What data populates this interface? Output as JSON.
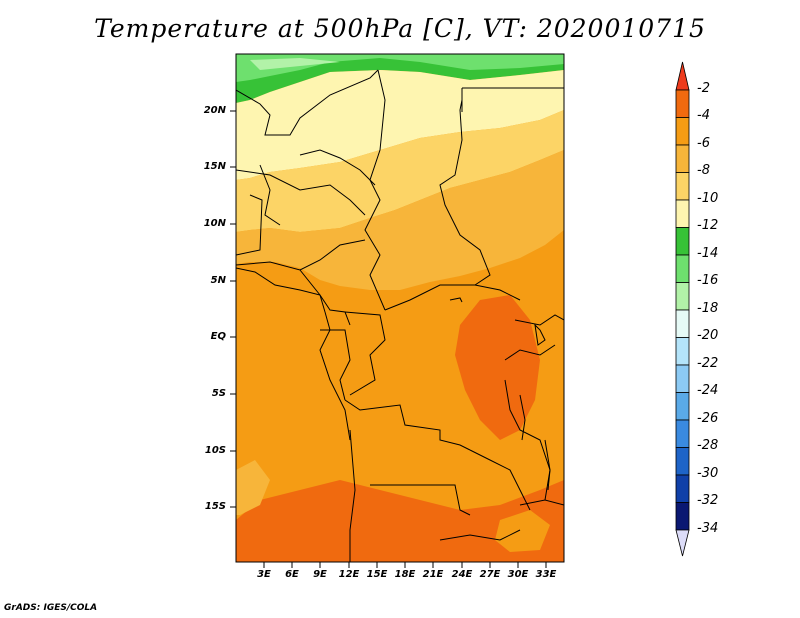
{
  "title": "Temperature at 500hPa [C], VT: 2020010715",
  "credit": "GrADS: IGES/COLA",
  "map": {
    "lat_labels": [
      "20N",
      "15N",
      "10N",
      "5N",
      "EQ",
      "5S",
      "10S",
      "15S"
    ],
    "lon_labels": [
      "3E",
      "6E",
      "9E",
      "12E",
      "15E",
      "18E",
      "21E",
      "24E",
      "27E",
      "30E",
      "33E"
    ]
  },
  "colorbar": {
    "labels": [
      "-2",
      "-4",
      "-6",
      "-8",
      "-10",
      "-12",
      "-14",
      "-16",
      "-18",
      "-20",
      "-22",
      "-24",
      "-26",
      "-28",
      "-30",
      "-32",
      "-34"
    ],
    "colors": [
      "#ee3b1d",
      "#f06a0f",
      "#f59c14",
      "#f7b53a",
      "#fcd466",
      "#fef5b0",
      "#37c237",
      "#6ee06e",
      "#b2f2a8",
      "#e6faf6",
      "#b4e4fa",
      "#8ccaf4",
      "#5aaae8",
      "#3a8ae0",
      "#1e64c8",
      "#1040a8",
      "#0a1872",
      "#dcdcf8"
    ]
  },
  "temperature_field": {
    "description_colors": {
      "warmest": "#ee5a14",
      "warm": "#f59c14",
      "mild": "#f7b53a",
      "cool": "#fcd466",
      "cooler": "#fef5b0",
      "green_band": "#6ee06e",
      "dark_green_band": "#37c237"
    }
  }
}
